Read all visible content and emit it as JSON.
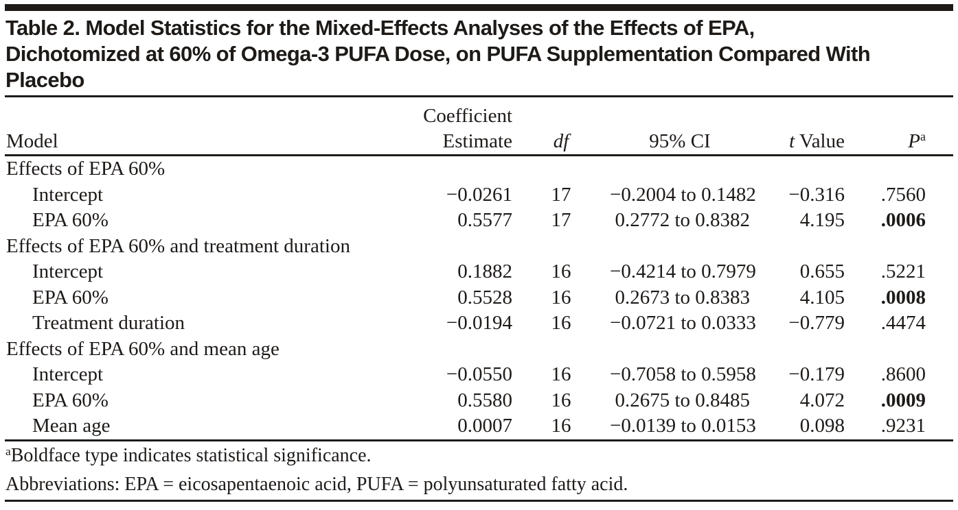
{
  "table": {
    "title_lines": [
      "Table 2. Model Statistics for the Mixed-Effects Analyses of the Effects of EPA,",
      "Dichotomized at 60% of Omega-3 PUFA Dose, on PUFA Supplementation Compared With",
      "Placebo"
    ],
    "columns": {
      "model": "Model",
      "estimate_line1": "Coefficient",
      "estimate_line2": "Estimate",
      "df": "df",
      "ci": "95% CI",
      "t_italic": "t",
      "t_rest": " Value",
      "p_italic": "P",
      "p_sup": "a"
    },
    "sections": [
      {
        "header": "Effects of EPA 60%",
        "rows": [
          {
            "label": "Intercept",
            "estimate": "−0.0261",
            "df": "17",
            "ci": "−0.2004 to 0.1482",
            "t": "−0.316",
            "p": ".7560",
            "p_bold": false
          },
          {
            "label": "EPA 60%",
            "estimate": "0.5577",
            "df": "17",
            "ci": "0.2772 to 0.8382",
            "t": "4.195",
            "p": ".0006",
            "p_bold": true
          }
        ]
      },
      {
        "header": "Effects of EPA 60% and treatment duration",
        "rows": [
          {
            "label": "Intercept",
            "estimate": "0.1882",
            "df": "16",
            "ci": "−0.4214 to 0.7979",
            "t": "0.655",
            "p": ".5221",
            "p_bold": false
          },
          {
            "label": "EPA 60%",
            "estimate": "0.5528",
            "df": "16",
            "ci": "0.2673 to 0.8383",
            "t": "4.105",
            "p": ".0008",
            "p_bold": true
          },
          {
            "label": "Treatment duration",
            "estimate": "−0.0194",
            "df": "16",
            "ci": "−0.0721 to 0.0333",
            "t": "−0.779",
            "p": ".4474",
            "p_bold": false
          }
        ]
      },
      {
        "header": "Effects of EPA 60% and mean age",
        "rows": [
          {
            "label": "Intercept",
            "estimate": "−0.0550",
            "df": "16",
            "ci": "−0.7058 to 0.5958",
            "t": "−0.179",
            "p": ".8600",
            "p_bold": false
          },
          {
            "label": "EPA 60%",
            "estimate": "0.5580",
            "df": "16",
            "ci": "0.2675 to 0.8485",
            "t": "4.072",
            "p": ".0009",
            "p_bold": true
          },
          {
            "label": "Mean age",
            "estimate": "0.0007",
            "df": "16",
            "ci": "−0.0139 to 0.0153",
            "t": "0.098",
            "p": ".9231",
            "p_bold": false
          }
        ]
      }
    ],
    "footnotes": [
      {
        "sup": "a",
        "text": "Boldface type indicates statistical significance."
      },
      {
        "sup": "",
        "text": "Abbreviations: EPA = eicosapentaenoic acid, PUFA = polyunsaturated fatty acid."
      }
    ],
    "colors": {
      "text": "#1d1a18",
      "rule": "#1d1a18",
      "background": "#ffffff"
    }
  }
}
